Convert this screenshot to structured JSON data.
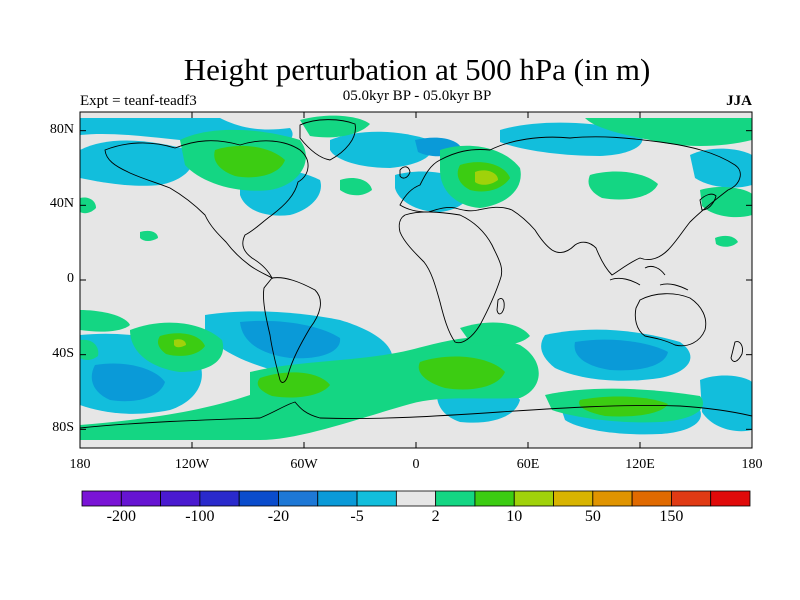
{
  "title": "Height perturbation at 500 hPa (in m)",
  "subtitle": "05.0kyr BP - 05.0kyr BP",
  "experiment": "Expt = teanf-teadf3",
  "season": "JJA",
  "map": {
    "projection": "cylindrical equidistant",
    "lon_range": [
      -180,
      180
    ],
    "lat_range": [
      -90,
      90
    ],
    "lat_ticks": [
      {
        "value": 80,
        "label": "80N"
      },
      {
        "value": 40,
        "label": "40N"
      },
      {
        "value": 0,
        "label": "0"
      },
      {
        "value": -40,
        "label": "40S"
      },
      {
        "value": -80,
        "label": "80S"
      }
    ],
    "lon_ticks": [
      {
        "value": -180,
        "label": "180"
      },
      {
        "value": -120,
        "label": "120W"
      },
      {
        "value": -60,
        "label": "60W"
      },
      {
        "value": 0,
        "label": "0"
      },
      {
        "value": 60,
        "label": "60E"
      },
      {
        "value": 120,
        "label": "120E"
      },
      {
        "value": 180,
        "label": "180"
      }
    ],
    "background_color": "#e6e6e6"
  },
  "colorbar": {
    "colors": [
      "#7a14d6",
      "#6614d2",
      "#4a1ad0",
      "#2a2acc",
      "#0a4ccc",
      "#1e78d6",
      "#0a9ad8",
      "#12bedc",
      "#e6e6e6",
      "#14d683",
      "#3ccc12",
      "#a0d20a",
      "#d8b400",
      "#e09400",
      "#e06a00",
      "#e03a14",
      "#e00a0a"
    ],
    "labels": [
      "-200",
      "-100",
      "-20",
      "-5",
      "2",
      "10",
      "50",
      "150"
    ]
  }
}
